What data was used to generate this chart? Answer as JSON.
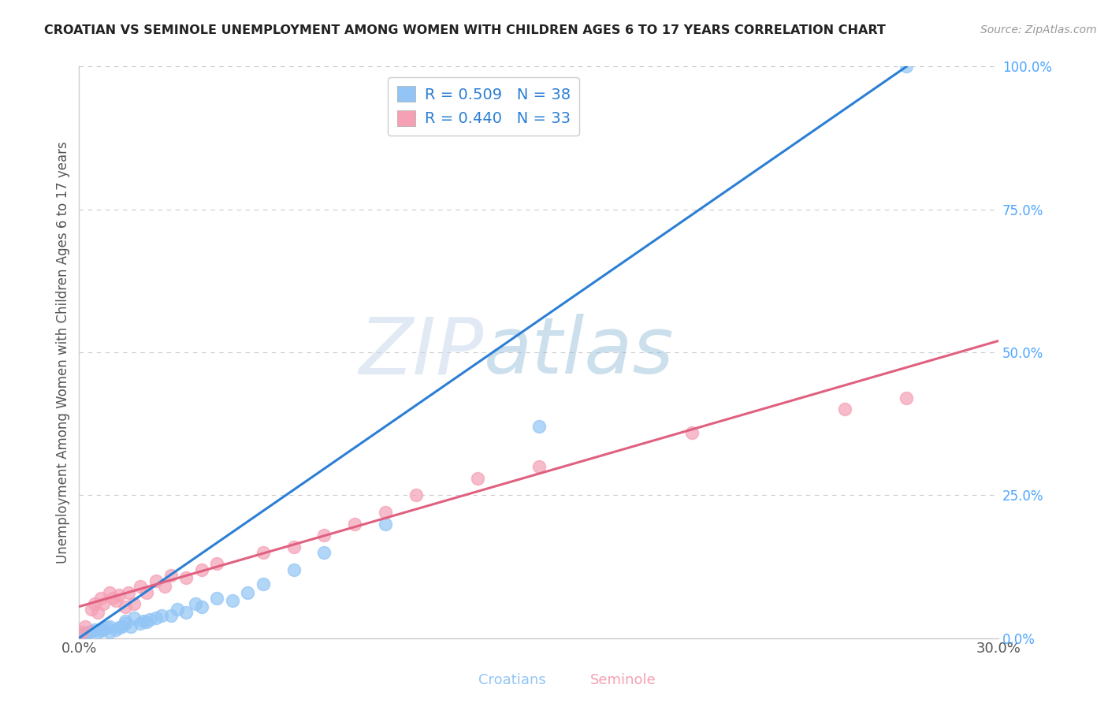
{
  "title": "CROATIAN VS SEMINOLE UNEMPLOYMENT AMONG WOMEN WITH CHILDREN AGES 6 TO 17 YEARS CORRELATION CHART",
  "source": "Source: ZipAtlas.com",
  "ylabel": "Unemployment Among Women with Children Ages 6 to 17 years",
  "xmin": 0.0,
  "xmax": 0.3,
  "ymin": 0.0,
  "ymax": 1.0,
  "croatians_R": 0.509,
  "croatians_N": 38,
  "seminole_R": 0.44,
  "seminole_N": 33,
  "croatian_color": "#92C5F5",
  "seminole_color": "#F5A0B5",
  "croatian_line_color": "#2B7FD4",
  "seminole_line_color": "#E06080",
  "legend_blue": "#2B7FD4",
  "legend_pink": "#E06080",
  "croatians_x": [
    0.001,
    0.002,
    0.003,
    0.004,
    0.005,
    0.006,
    0.007,
    0.008,
    0.009,
    0.01,
    0.01,
    0.012,
    0.013,
    0.014,
    0.015,
    0.015,
    0.017,
    0.018,
    0.02,
    0.021,
    0.022,
    0.023,
    0.025,
    0.027,
    0.03,
    0.032,
    0.035,
    0.038,
    0.04,
    0.045,
    0.05,
    0.055,
    0.06,
    0.07,
    0.08,
    0.1,
    0.15,
    0.27
  ],
  "croatians_y": [
    0.005,
    0.008,
    0.01,
    0.012,
    0.015,
    0.01,
    0.013,
    0.015,
    0.018,
    0.01,
    0.02,
    0.015,
    0.018,
    0.02,
    0.025,
    0.03,
    0.02,
    0.035,
    0.025,
    0.03,
    0.028,
    0.032,
    0.035,
    0.04,
    0.04,
    0.05,
    0.045,
    0.06,
    0.055,
    0.07,
    0.065,
    0.08,
    0.095,
    0.12,
    0.15,
    0.2,
    0.37,
    1.0
  ],
  "seminole_x": [
    0.001,
    0.002,
    0.004,
    0.005,
    0.006,
    0.007,
    0.008,
    0.01,
    0.011,
    0.012,
    0.013,
    0.015,
    0.016,
    0.018,
    0.02,
    0.022,
    0.025,
    0.028,
    0.03,
    0.035,
    0.04,
    0.045,
    0.06,
    0.07,
    0.08,
    0.09,
    0.1,
    0.11,
    0.13,
    0.15,
    0.2,
    0.25,
    0.27
  ],
  "seminole_y": [
    0.01,
    0.02,
    0.05,
    0.06,
    0.045,
    0.07,
    0.06,
    0.08,
    0.07,
    0.065,
    0.075,
    0.055,
    0.08,
    0.06,
    0.09,
    0.08,
    0.1,
    0.09,
    0.11,
    0.105,
    0.12,
    0.13,
    0.15,
    0.16,
    0.18,
    0.2,
    0.22,
    0.25,
    0.28,
    0.3,
    0.36,
    0.4,
    0.42
  ],
  "croatian_line": [
    0.0,
    0.27,
    0.0,
    1.0
  ],
  "seminole_line": [
    0.0,
    0.3,
    0.055,
    0.52
  ],
  "yticks": [
    0.0,
    0.25,
    0.5,
    0.75,
    1.0
  ],
  "ytick_labels": [
    "0.0%",
    "25.0%",
    "50.0%",
    "75.0%",
    "100.0%"
  ],
  "bottom_label1": "Croatians",
  "bottom_label2": "Seminole",
  "watermark_zip": "ZIP",
  "watermark_atlas": "atlas",
  "bg_color": "#FFFFFF",
  "grid_color": "#CCCCCC",
  "spine_color": "#CCCCCC"
}
